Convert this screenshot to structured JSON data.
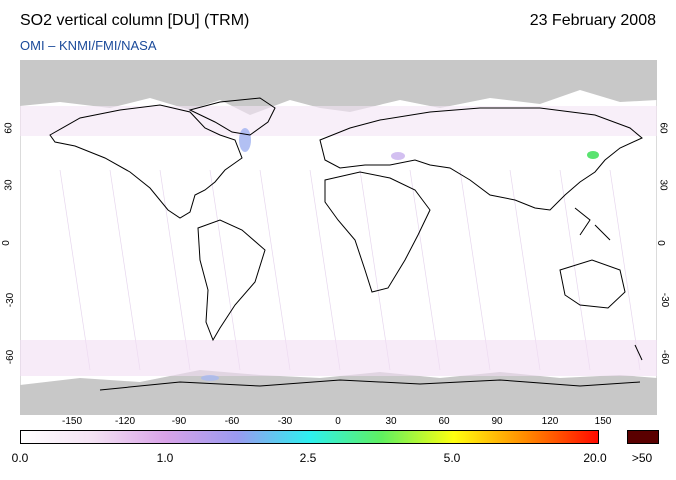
{
  "header": {
    "title": "SO2 vertical column [DU] (TRM)",
    "date": "23 February 2008",
    "credit": "OMI  –  KNMI/FMI/NASA"
  },
  "axes": {
    "longitude_ticks": [
      "-150",
      "-120",
      "-90",
      "-60",
      "-30",
      "0",
      "30",
      "60",
      "90",
      "120",
      "150"
    ],
    "latitude_ticks_left": [
      "60",
      "30",
      "0",
      "-30",
      "-60"
    ],
    "latitude_ticks_right": [
      "60",
      "30",
      "0",
      "-30",
      "-60"
    ]
  },
  "colorbar": {
    "labels": [
      "0.0",
      "1.0",
      "2.5",
      "5.0",
      "20.0",
      ">50"
    ],
    "gradient": [
      "#ffffff",
      "#f3e1f3",
      "#d9a3e8",
      "#9a9af0",
      "#2ef0f0",
      "#5ff060",
      "#ffff10",
      "#ff8a00",
      "#ff0a00"
    ],
    "max_color": "#5a0000"
  },
  "colors": {
    "land_polar_mask": "#c8c8c8",
    "coastline": "#000000",
    "credit": "#1a4a9a"
  }
}
